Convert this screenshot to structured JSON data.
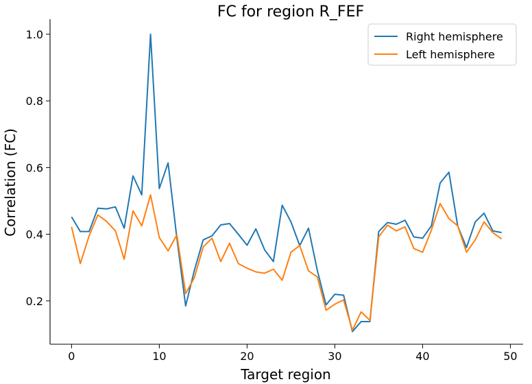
{
  "chart_data": {
    "type": "line",
    "title": "FC for region R_FEF",
    "xlabel": "Target region",
    "ylabel": "Correlation (FC)",
    "xlim": [
      -2.45,
      51.45
    ],
    "ylim": [
      0.07,
      1.045
    ],
    "xticks": [
      0,
      10,
      20,
      30,
      40,
      50
    ],
    "xtick_labels": [
      "0",
      "10",
      "20",
      "30",
      "40",
      "50"
    ],
    "yticks": [
      0.2,
      0.4,
      0.6,
      0.8,
      1.0
    ],
    "ytick_labels": [
      "0.2",
      "0.4",
      "0.6",
      "0.8",
      "1.0"
    ],
    "grid": false,
    "legend_position": "top-right",
    "x": [
      0,
      1,
      2,
      3,
      4,
      5,
      6,
      7,
      8,
      9,
      10,
      11,
      12,
      13,
      14,
      15,
      16,
      17,
      18,
      19,
      20,
      21,
      22,
      23,
      24,
      25,
      26,
      27,
      28,
      29,
      30,
      31,
      32,
      33,
      34,
      35,
      36,
      37,
      38,
      39,
      40,
      41,
      42,
      43,
      44,
      45,
      46,
      47,
      48,
      49
    ],
    "series": [
      {
        "name": "Right hemisphere",
        "color": "#1f77b4",
        "values": [
          0.452,
          0.408,
          0.408,
          0.478,
          0.476,
          0.482,
          0.418,
          0.575,
          0.518,
          1.0,
          0.537,
          0.614,
          0.388,
          0.185,
          0.292,
          0.383,
          0.395,
          0.428,
          0.432,
          0.4,
          0.367,
          0.416,
          0.353,
          0.318,
          0.487,
          0.437,
          0.366,
          0.418,
          0.292,
          0.188,
          0.22,
          0.217,
          0.108,
          0.138,
          0.138,
          0.408,
          0.435,
          0.43,
          0.442,
          0.392,
          0.388,
          0.425,
          0.554,
          0.586,
          0.425,
          0.36,
          0.437,
          0.463,
          0.41,
          0.405
        ]
      },
      {
        "name": "Left hemisphere",
        "color": "#ff7f0e",
        "values": [
          0.422,
          0.312,
          0.395,
          0.458,
          0.438,
          0.41,
          0.325,
          0.47,
          0.425,
          0.518,
          0.39,
          0.35,
          0.398,
          0.222,
          0.27,
          0.362,
          0.388,
          0.318,
          0.373,
          0.312,
          0.298,
          0.287,
          0.283,
          0.295,
          0.262,
          0.346,
          0.366,
          0.29,
          0.272,
          0.172,
          0.19,
          0.203,
          0.112,
          0.167,
          0.142,
          0.392,
          0.427,
          0.41,
          0.422,
          0.357,
          0.346,
          0.412,
          0.492,
          0.447,
          0.425,
          0.346,
          0.383,
          0.437,
          0.405,
          0.386
        ]
      }
    ]
  }
}
